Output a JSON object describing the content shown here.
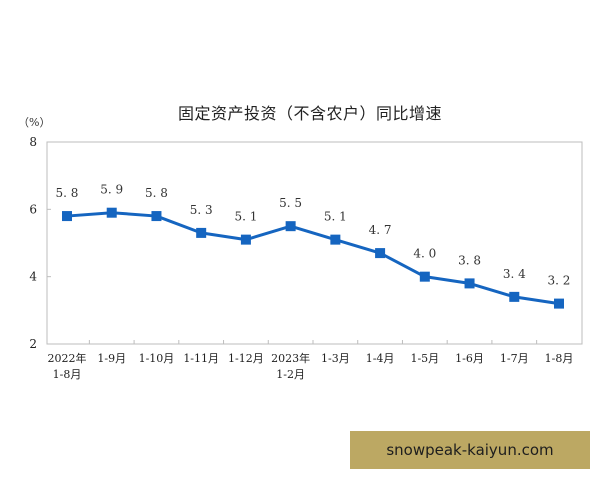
{
  "chart_data": {
    "type": "line",
    "title": "固定资产投资（不含农户）同比增速",
    "ylabel": "（%）",
    "xlabel": "",
    "ylim": [
      2,
      8
    ],
    "yticks": [
      2,
      4,
      6,
      8
    ],
    "grid": false,
    "legend": null,
    "categories": [
      [
        "2022年",
        "1-8月"
      ],
      [
        "1-9月"
      ],
      [
        "1-10月"
      ],
      [
        "1-11月"
      ],
      [
        "1-12月"
      ],
      [
        "2023年",
        "1-2月"
      ],
      [
        "1-3月"
      ],
      [
        "1-4月"
      ],
      [
        "1-5月"
      ],
      [
        "1-6月"
      ],
      [
        "1-7月"
      ],
      [
        "1-8月"
      ]
    ],
    "series": [
      {
        "name": "固定资产投资（不含农户）同比增速",
        "values": [
          5.8,
          5.9,
          5.8,
          5.3,
          5.1,
          5.5,
          5.1,
          4.7,
          4.0,
          3.8,
          3.4,
          3.2
        ],
        "labels": [
          "5.8",
          "5.9",
          "5.8",
          "5.3",
          "5.1",
          "5.5",
          "5.1",
          "4.7",
          "4.0",
          "3.8",
          "3.4",
          "3.2"
        ],
        "color": "#1565c0",
        "marker": "square"
      }
    ]
  },
  "watermark": {
    "text": "snowpeak-kaiyun.com",
    "background": "#bca863"
  }
}
